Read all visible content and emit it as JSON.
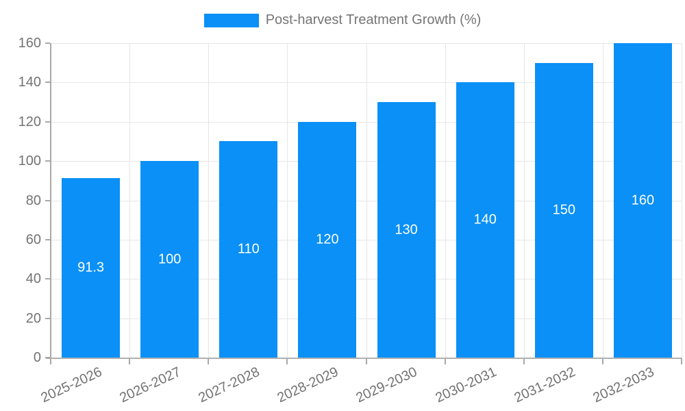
{
  "legend": {
    "label": "Post-harvest Treatment Growth (%)"
  },
  "chart_data": {
    "type": "bar",
    "title": "",
    "xlabel": "",
    "ylabel": "",
    "categories": [
      "2025-2026",
      "2026-2027",
      "2027-2028",
      "2028-2029",
      "2029-2030",
      "2030-2031",
      "2031-2032",
      "2032-2033"
    ],
    "values": [
      91.3,
      100,
      110,
      120,
      130,
      140,
      150,
      160
    ],
    "value_labels": [
      "91.3",
      "100",
      "110",
      "120",
      "130",
      "140",
      "150",
      "160"
    ],
    "ylim": [
      0,
      160
    ],
    "yticks": [
      0,
      20,
      40,
      60,
      80,
      100,
      120,
      140,
      160
    ],
    "grid": true,
    "legend_position": "top",
    "bar_color": "#0a90f6",
    "label_color": "#737373",
    "value_label_color": "#ffffff",
    "gridline_color": "#e6e6e6",
    "axis_color": "#a8a8a8"
  }
}
